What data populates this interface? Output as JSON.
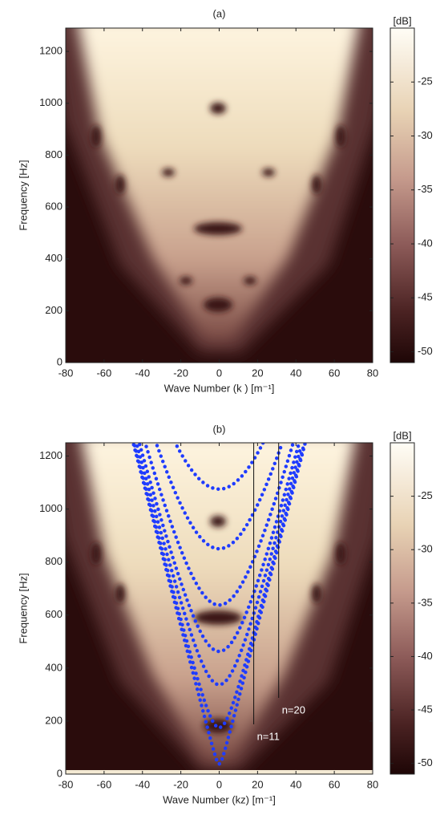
{
  "chart_data": [
    {
      "type": "heatmap",
      "title": "(a)",
      "xlabel": "Wave Number (k ) [m⁻¹]",
      "ylabel": "Frequency [Hz]",
      "xlim": [
        -80,
        80
      ],
      "xticks": [
        -80,
        -60,
        -40,
        -20,
        0,
        20,
        40,
        60,
        80
      ],
      "ylim": [
        0,
        1290
      ],
      "yticks": [
        0,
        200,
        400,
        600,
        800,
        1000,
        1200
      ],
      "colorbar": {
        "label": "[dB]",
        "lim": [
          -51,
          -20
        ],
        "ticks": [
          -25,
          -30,
          -35,
          -40,
          -45,
          -50
        ]
      }
    },
    {
      "type": "heatmap",
      "title": "(b)",
      "xlabel": "Wave Number (kz) [m⁻¹]",
      "ylabel": "Frequency [Hz]",
      "xlim": [
        -80,
        80
      ],
      "xticks": [
        -80,
        -60,
        -40,
        -20,
        0,
        20,
        40,
        60,
        80
      ],
      "ylim": [
        0,
        1250
      ],
      "yticks": [
        0,
        200,
        400,
        600,
        800,
        1000,
        1200
      ],
      "colorbar": {
        "label": "[dB]",
        "lim": [
          -51,
          -20
        ],
        "ticks": [
          -25,
          -30,
          -35,
          -40,
          -45,
          -50
        ]
      },
      "annotations": [
        {
          "x": 18,
          "label": "n=11"
        },
        {
          "x": 31,
          "label": "n=20"
        }
      ]
    }
  ]
}
